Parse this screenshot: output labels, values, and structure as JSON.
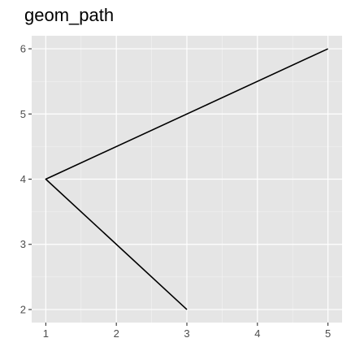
{
  "chart_data": {
    "type": "line",
    "title": "geom_path",
    "xlabel": "",
    "ylabel": "",
    "x": [
      5,
      1,
      3
    ],
    "y": [
      6,
      4,
      2
    ],
    "xlim": [
      0.8,
      5.2
    ],
    "ylim": [
      1.8,
      6.2
    ],
    "xticks": [
      1,
      2,
      3,
      4,
      5
    ],
    "yticks": [
      2,
      3,
      4,
      5,
      6
    ],
    "xminor": [
      1.5,
      2.5,
      3.5,
      4.5
    ],
    "yminor": [
      2.5,
      3.5,
      4.5,
      5.5
    ],
    "grid": true,
    "colors": {
      "panel": "#e5e5e5",
      "grid_major": "#ffffff",
      "grid_minor": "#f2f2f2",
      "line": "#000000",
      "tick": "#333333"
    }
  }
}
